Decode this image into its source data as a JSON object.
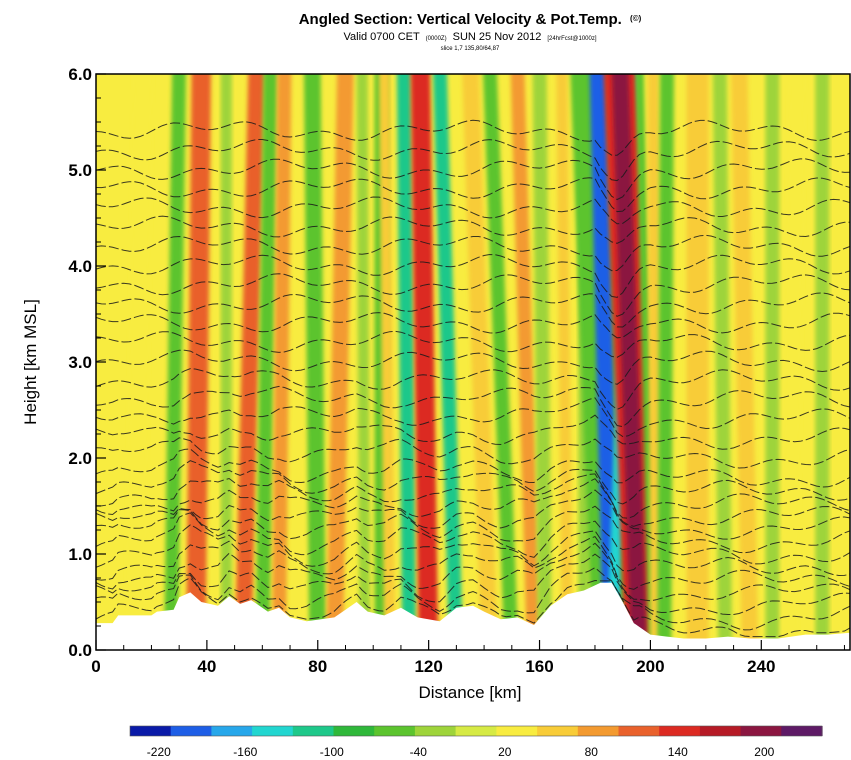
{
  "chart_data": {
    "type": "heatmap",
    "title": "Angled Section: Vertical Velocity & Pot.Temp.",
    "title_mark": "(©)",
    "subtitle_valid": "Valid 0700 CET",
    "subtitle_run": "(0000Z)",
    "subtitle_date": "SUN 25 Nov 2012",
    "subtitle_fcst": "[24hrFcst@1000z]",
    "subtitle_small": "slice 1,7   135,80/64,87",
    "xlabel": "Distance [km]",
    "ylabel": "Height [km MSL]",
    "xlim": [
      0,
      272
    ],
    "ylim": [
      0,
      6
    ],
    "x_ticks": [
      "0",
      "40",
      "80",
      "120",
      "160",
      "200",
      "240"
    ],
    "x_tick_values": [
      0,
      40,
      80,
      120,
      160,
      200,
      240
    ],
    "y_ticks": [
      "0.0",
      "1.0",
      "2.0",
      "3.0",
      "4.0",
      "5.0",
      "6.0"
    ],
    "y_tick_values": [
      0,
      1,
      2,
      3,
      4,
      5,
      6
    ],
    "colorbar": {
      "min": -240,
      "max": 240,
      "labels": [
        "-220",
        "-160",
        "-100",
        "-40",
        "20",
        "80",
        "140",
        "200"
      ],
      "label_values": [
        -220,
        -160,
        -100,
        -40,
        20,
        80,
        140,
        200
      ],
      "colors": [
        "#0a1aa8",
        "#1e5ee6",
        "#27a7ea",
        "#22d6d0",
        "#1ec88a",
        "#2fb83a",
        "#5cc42e",
        "#9ed43a",
        "#d6ea44",
        "#f8ec40",
        "#f8cc38",
        "#f39a30",
        "#e9612c",
        "#dc2a22",
        "#b61a26",
        "#8b1640",
        "#5e1a66"
      ]
    },
    "background_value": 15,
    "terrain": [
      [
        0,
        0.28
      ],
      [
        6,
        0.28
      ],
      [
        8,
        0.36
      ],
      [
        20,
        0.36
      ],
      [
        22,
        0.4
      ],
      [
        28,
        0.42
      ],
      [
        30,
        0.55
      ],
      [
        34,
        0.6
      ],
      [
        38,
        0.5
      ],
      [
        44,
        0.46
      ],
      [
        48,
        0.56
      ],
      [
        52,
        0.48
      ],
      [
        56,
        0.52
      ],
      [
        62,
        0.4
      ],
      [
        66,
        0.44
      ],
      [
        70,
        0.34
      ],
      [
        76,
        0.3
      ],
      [
        86,
        0.34
      ],
      [
        90,
        0.42
      ],
      [
        94,
        0.5
      ],
      [
        98,
        0.4
      ],
      [
        104,
        0.36
      ],
      [
        110,
        0.44
      ],
      [
        116,
        0.34
      ],
      [
        124,
        0.3
      ],
      [
        130,
        0.44
      ],
      [
        136,
        0.46
      ],
      [
        140,
        0.4
      ],
      [
        146,
        0.32
      ],
      [
        152,
        0.34
      ],
      [
        158,
        0.26
      ],
      [
        164,
        0.46
      ],
      [
        170,
        0.58
      ],
      [
        176,
        0.62
      ],
      [
        182,
        0.7
      ],
      [
        186,
        0.7
      ],
      [
        190,
        0.5
      ],
      [
        194,
        0.28
      ],
      [
        200,
        0.16
      ],
      [
        206,
        0.14
      ],
      [
        212,
        0.12
      ],
      [
        220,
        0.12
      ],
      [
        228,
        0.14
      ],
      [
        236,
        0.12
      ],
      [
        246,
        0.12
      ],
      [
        256,
        0.16
      ],
      [
        264,
        0.16
      ],
      [
        272,
        0.18
      ]
    ],
    "series": [
      {
        "top_x": 17,
        "bottom_x": 14,
        "width": 6,
        "value": 40
      },
      {
        "top_x": 30,
        "bottom_x": 27,
        "width": 5,
        "value": -55
      },
      {
        "top_x": 38,
        "bottom_x": 36,
        "width": 7,
        "value": 110
      },
      {
        "top_x": 47,
        "bottom_x": 47,
        "width": 4,
        "value": -40
      },
      {
        "top_x": 58,
        "bottom_x": 53,
        "width": 6,
        "value": 100
      },
      {
        "top_x": 63,
        "bottom_x": 60,
        "width": 5,
        "value": -45
      },
      {
        "top_x": 68,
        "bottom_x": 66,
        "width": 5,
        "value": 80
      },
      {
        "top_x": 78,
        "bottom_x": 80,
        "width": 6,
        "value": -45
      },
      {
        "top_x": 90,
        "bottom_x": 86,
        "width": 6,
        "value": 75
      },
      {
        "top_x": 96,
        "bottom_x": 97,
        "width": 4,
        "value": -40
      },
      {
        "top_x": 103,
        "bottom_x": 103,
        "width": 5,
        "value": -70
      },
      {
        "top_x": 104,
        "bottom_x": 106,
        "width": 4,
        "value": 60
      },
      {
        "top_x": 111,
        "bottom_x": 113,
        "width": 5,
        "value": -110
      },
      {
        "top_x": 117,
        "bottom_x": 120,
        "width": 7,
        "value": 150
      },
      {
        "top_x": 124,
        "bottom_x": 130,
        "width": 5,
        "value": -110
      },
      {
        "top_x": 135,
        "bottom_x": 142,
        "width": 6,
        "value": 70
      },
      {
        "top_x": 142,
        "bottom_x": 150,
        "width": 5,
        "value": -50
      },
      {
        "top_x": 152,
        "bottom_x": 158,
        "width": 5,
        "value": 80
      },
      {
        "top_x": 160,
        "bottom_x": 162,
        "width": 5,
        "value": -40
      },
      {
        "top_x": 168,
        "bottom_x": 170,
        "width": 4,
        "value": 60
      },
      {
        "top_x": 176,
        "bottom_x": 176,
        "width": 4,
        "value": -40
      },
      {
        "top_x": 178,
        "bottom_x": 186,
        "width": 14,
        "value": -60
      },
      {
        "top_x": 181,
        "bottom_x": 186,
        "width": 6,
        "value": -200
      },
      {
        "top_x": 194,
        "bottom_x": 186,
        "width": 4,
        "value": -140
      },
      {
        "top_x": 189,
        "bottom_x": 197,
        "width": 12,
        "value": 140
      },
      {
        "top_x": 189,
        "bottom_x": 196,
        "width": 6,
        "value": 190
      },
      {
        "top_x": 196,
        "bottom_x": 201,
        "width": 3,
        "value": -60
      },
      {
        "top_x": 201,
        "bottom_x": 202,
        "width": 4,
        "value": 70
      },
      {
        "top_x": 206,
        "bottom_x": 205,
        "width": 5,
        "value": -45
      },
      {
        "top_x": 217,
        "bottom_x": 217,
        "width": 8,
        "value": 60
      },
      {
        "top_x": 225,
        "bottom_x": 227,
        "width": 5,
        "value": -40
      },
      {
        "top_x": 232,
        "bottom_x": 236,
        "width": 6,
        "value": 50
      },
      {
        "top_x": 244,
        "bottom_x": 244,
        "width": 5,
        "value": -40
      },
      {
        "top_x": 253,
        "bottom_x": 250,
        "width": 5,
        "value": 40
      },
      {
        "top_x": 262,
        "bottom_x": 262,
        "width": 5,
        "value": -35
      }
    ],
    "isentropes": {
      "count": 31,
      "base_height": 0.25,
      "spacing_low": 0.13,
      "spacing_high": 0.2
    }
  }
}
